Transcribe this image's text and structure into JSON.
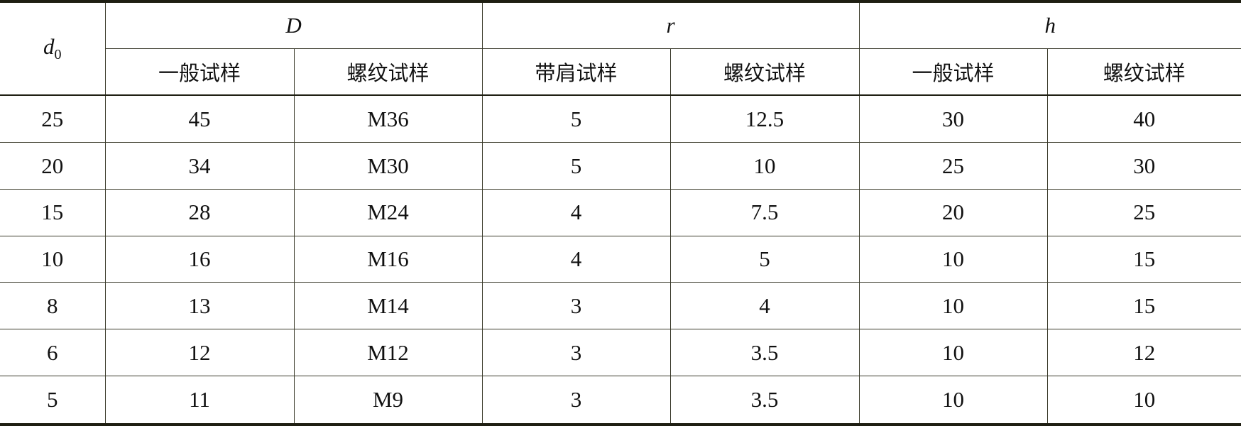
{
  "header": {
    "d0": {
      "main": "d",
      "sub": "0"
    },
    "groups": [
      "D",
      "r",
      "h"
    ],
    "subheaders": [
      "一般试样",
      "螺纹试样",
      "带肩试样",
      "螺纹试样",
      "一般试样",
      "螺纹试样"
    ]
  },
  "rows": [
    [
      "25",
      "45",
      "M36",
      "5",
      "12.5",
      "30",
      "40"
    ],
    [
      "20",
      "34",
      "M30",
      "5",
      "10",
      "25",
      "30"
    ],
    [
      "15",
      "28",
      "M24",
      "4",
      "7.5",
      "20",
      "25"
    ],
    [
      "10",
      "16",
      "M16",
      "4",
      "5",
      "10",
      "15"
    ],
    [
      "8",
      "13",
      "M14",
      "3",
      "4",
      "10",
      "15"
    ],
    [
      "6",
      "12",
      "M12",
      "3",
      "3.5",
      "10",
      "12"
    ],
    [
      "5",
      "11",
      "M9",
      "3",
      "3.5",
      "10",
      "10"
    ]
  ]
}
